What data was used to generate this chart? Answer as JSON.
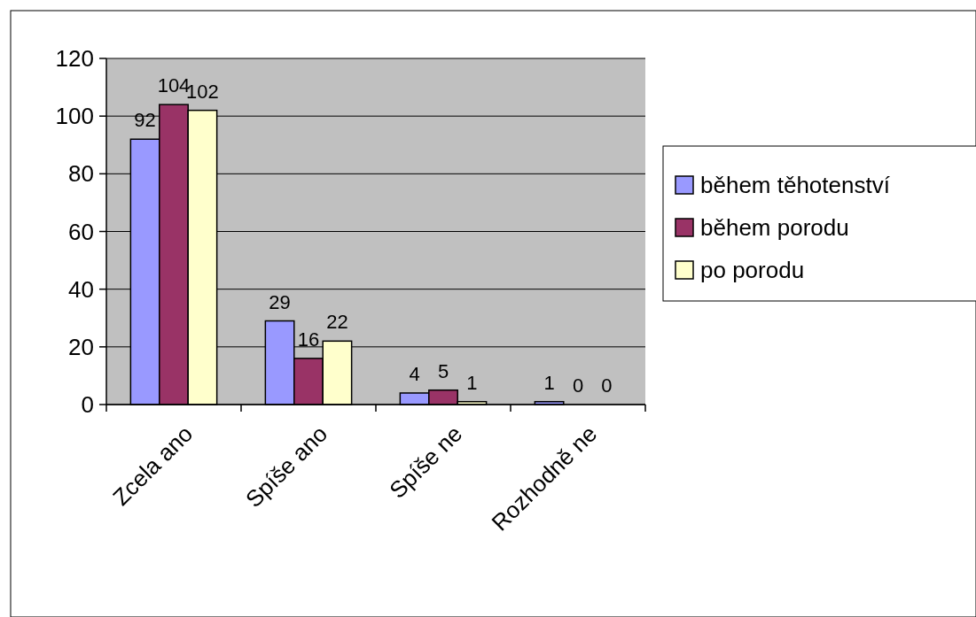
{
  "chart_data": {
    "type": "bar",
    "categories": [
      "Zcela ano",
      "Spíše ano",
      "Spíše ne",
      "Rozhodně ne"
    ],
    "series": [
      {
        "name": "během těhotenství",
        "color": "#9999ff",
        "values": [
          92,
          29,
          4,
          1
        ]
      },
      {
        "name": "během porodu",
        "color": "#993366",
        "values": [
          104,
          16,
          5,
          0
        ]
      },
      {
        "name": "po porodu",
        "color": "#ffffcc",
        "values": [
          102,
          22,
          1,
          0
        ]
      }
    ],
    "ylim": [
      0,
      120
    ],
    "yticks": [
      0,
      20,
      40,
      60,
      80,
      100,
      120
    ],
    "grid": "y",
    "legend": "right",
    "data_labels": true
  }
}
